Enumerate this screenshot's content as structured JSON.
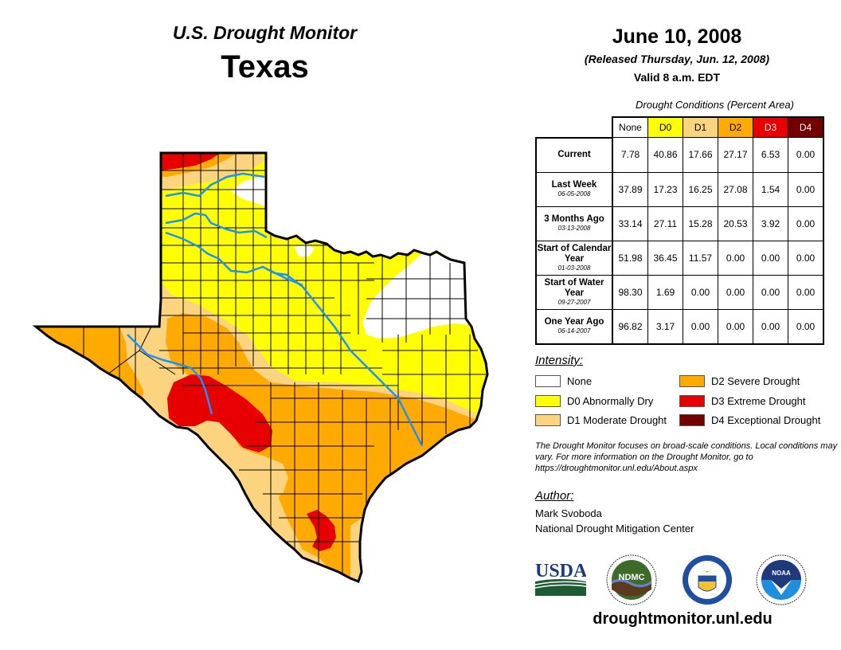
{
  "header": {
    "product": "U.S. Drought Monitor",
    "state": "Texas",
    "date": "June 10, 2008",
    "released": "(Released Thursday, Jun. 12, 2008)",
    "valid": "Valid 8 a.m. EDT"
  },
  "table": {
    "caption": "Drought Conditions (Percent Area)",
    "columns": [
      {
        "label": "None",
        "color": "#FFFFFF",
        "text_color": "#000000"
      },
      {
        "label": "D0",
        "color": "#FFFF00",
        "text_color": "#000000"
      },
      {
        "label": "D1",
        "color": "#FCD37F",
        "text_color": "#000000"
      },
      {
        "label": "D2",
        "color": "#FFAA00",
        "text_color": "#000000"
      },
      {
        "label": "D3",
        "color": "#E60000",
        "text_color": "#FFFFFF"
      },
      {
        "label": "D4",
        "color": "#730000",
        "text_color": "#FFFFFF"
      }
    ],
    "rows": [
      {
        "label": "Current",
        "sub": "",
        "values": [
          "7.78",
          "40.86",
          "17.66",
          "27.17",
          "6.53",
          "0.00"
        ]
      },
      {
        "label": "Last Week",
        "sub": "06-05-2008",
        "values": [
          "37.89",
          "17.23",
          "16.25",
          "27.08",
          "1.54",
          "0.00"
        ]
      },
      {
        "label": "3 Months Ago",
        "sub": "03-13-2008",
        "values": [
          "33.14",
          "27.11",
          "15.28",
          "20.53",
          "3.92",
          "0.00"
        ]
      },
      {
        "label": "Start of Calendar Year",
        "sub": "01-03-2008",
        "values": [
          "51.98",
          "36.45",
          "11.57",
          "0.00",
          "0.00",
          "0.00"
        ]
      },
      {
        "label": "Start of Water Year",
        "sub": "09-27-2007",
        "values": [
          "98.30",
          "1.69",
          "0.00",
          "0.00",
          "0.00",
          "0.00"
        ]
      },
      {
        "label": "One Year Ago",
        "sub": "06-14-2007",
        "values": [
          "96.82",
          "3.17",
          "0.00",
          "0.00",
          "0.00",
          "0.00"
        ]
      }
    ]
  },
  "legend": {
    "title": "Intensity:",
    "items": [
      {
        "label": "None",
        "color": "#FFFFFF"
      },
      {
        "label": "D0 Abnormally Dry",
        "color": "#FFFF00"
      },
      {
        "label": "D1 Moderate Drought",
        "color": "#FCD37F"
      },
      {
        "label": "D2 Severe Drought",
        "color": "#FFAA00"
      },
      {
        "label": "D3 Extreme Drought",
        "color": "#E60000"
      },
      {
        "label": "D4 Exceptional Drought",
        "color": "#730000"
      }
    ]
  },
  "note": "The Drought Monitor focuses on broad-scale conditions. Local conditions may vary. For more information on the Drought Monitor, go to https://droughtmonitor.unl.edu/About.aspx",
  "author": {
    "title": "Author:",
    "name": "Mark Svoboda",
    "org": "National Drought Mitigation Center"
  },
  "logos": [
    {
      "name": "usda-logo",
      "text": "USDA"
    },
    {
      "name": "ndmc-logo",
      "text": "NDMC"
    },
    {
      "name": "doc-seal-logo",
      "text": ""
    },
    {
      "name": "noaa-logo",
      "text": "NOAA"
    }
  ],
  "url": "droughtmonitor.unl.edu",
  "map": {
    "region": "Texas",
    "colors": {
      "none": "#FFFFFF",
      "d0": "#FFFF00",
      "d1": "#FCD37F",
      "d2": "#FFAA00",
      "d3": "#E60000",
      "river": "#1E90FF"
    }
  }
}
